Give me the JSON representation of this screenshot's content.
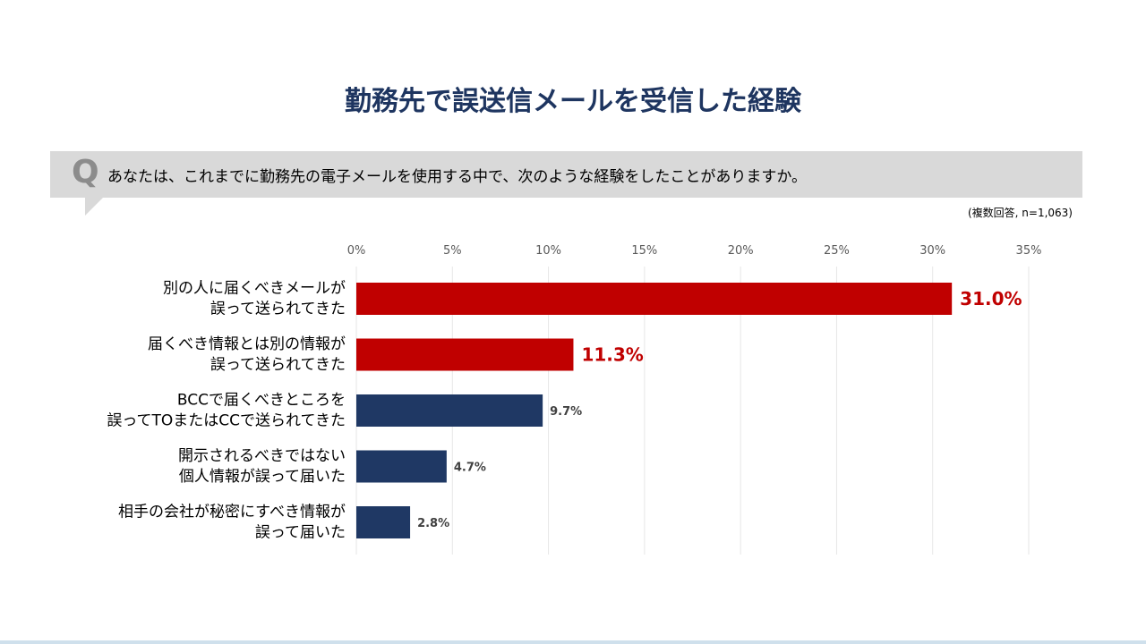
{
  "title": "勤務先で誤送信メールを受信した経験",
  "question": {
    "mark": "Q",
    "text": "あなたは、これまでに勤務先の電子メールを使用する中で、次のような経験をしたことがありますか。"
  },
  "note": "(複数回答, n=1,063)",
  "chart_data": {
    "type": "bar",
    "orientation": "horizontal",
    "categories": [
      [
        "別の人に届くべきメールが",
        "誤って送られてきた"
      ],
      [
        "届くべき情報とは別の情報が",
        "誤って送られてきた"
      ],
      [
        "BCCで届くべきところを",
        "誤ってTOまたはCCで送られてきた"
      ],
      [
        "開示されるべきではない",
        "個人情報が誤って届いた"
      ],
      [
        "相手の会社が秘密にすべき情報が",
        "誤って届いた"
      ]
    ],
    "values": [
      31.0,
      11.3,
      9.7,
      4.7,
      2.8
    ],
    "data_labels": [
      "31.0%",
      "11.3%",
      "9.7%",
      "4.7%",
      "2.8%"
    ],
    "highlighted": [
      true,
      true,
      false,
      false,
      false
    ],
    "xlim": [
      0,
      35
    ],
    "xticks": [
      "0%",
      "5%",
      "10%",
      "15%",
      "20%",
      "25%",
      "30%",
      "35%"
    ],
    "grid": true,
    "colors": {
      "highlight": "#c00000",
      "normal": "#1f3864",
      "grid": "#e6e6e6",
      "title": "#1e3560"
    }
  }
}
